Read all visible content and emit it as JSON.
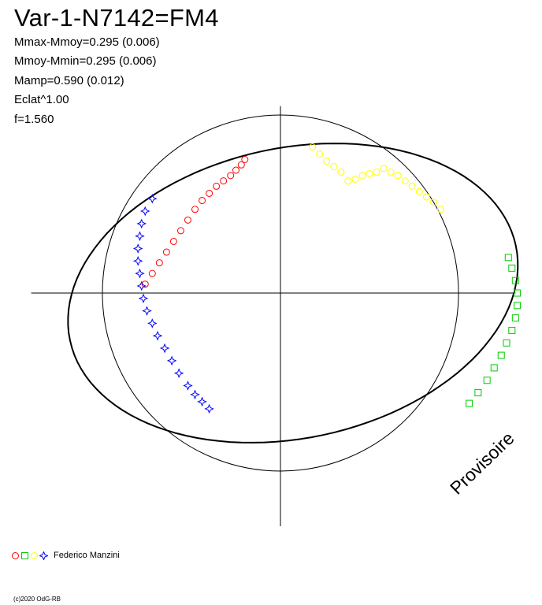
{
  "title": "Var-1-N7142=FM4",
  "stats": [
    "Mmax-Mmoy=0.295 (0.006)",
    "Mmoy-Mmin=0.295 (0.006)",
    "Mamp=0.590 (0.012)",
    "Eclat^1.00",
    "f=1.560"
  ],
  "watermark": "Provisoire",
  "legend": {
    "observer": "Federico Manzini",
    "symbols": [
      "circle",
      "square",
      "circle",
      "star"
    ],
    "colors": [
      "#ff0000",
      "#00cc00",
      "#ffff00",
      "#0000ff"
    ]
  },
  "footer": "(c)2020 OdG-RB",
  "chart_data": {
    "type": "scatter",
    "title": "Var-1-N7142=FM4",
    "xlabel": "",
    "ylabel": "",
    "grid": false,
    "reference_circle": true,
    "series": [
      {
        "color": "#ff0000",
        "marker": "circle",
        "x": [
          -0.76,
          -0.72,
          -0.68,
          -0.64,
          -0.6,
          -0.56,
          -0.52,
          -0.48,
          -0.44,
          -0.4,
          -0.36,
          -0.32,
          -0.28,
          -0.25,
          -0.22,
          -0.2
        ],
        "y": [
          0.05,
          0.11,
          0.17,
          0.23,
          0.29,
          0.35,
          0.41,
          0.47,
          0.52,
          0.56,
          0.6,
          0.63,
          0.66,
          0.69,
          0.72,
          0.75
        ]
      },
      {
        "color": "#0000ff",
        "marker": "star",
        "x": [
          -0.72,
          -0.76,
          -0.78,
          -0.79,
          -0.8,
          -0.8,
          -0.79,
          -0.78,
          -0.77,
          -0.75,
          -0.72,
          -0.69,
          -0.65,
          -0.61,
          -0.57,
          -0.52,
          -0.48,
          -0.44,
          -0.4
        ],
        "y": [
          0.53,
          0.46,
          0.39,
          0.32,
          0.25,
          0.18,
          0.11,
          0.04,
          -0.03,
          -0.1,
          -0.17,
          -0.24,
          -0.31,
          -0.38,
          -0.45,
          -0.52,
          -0.57,
          -0.61,
          -0.65
        ]
      },
      {
        "color": "#ffff00",
        "marker": "circle",
        "x": [
          0.18,
          0.22,
          0.26,
          0.3,
          0.34,
          0.38,
          0.42,
          0.46,
          0.5,
          0.54,
          0.58,
          0.62,
          0.66,
          0.7,
          0.74,
          0.78,
          0.82,
          0.86,
          0.9
        ],
        "y": [
          0.82,
          0.78,
          0.74,
          0.71,
          0.68,
          0.63,
          0.64,
          0.66,
          0.67,
          0.68,
          0.7,
          0.68,
          0.66,
          0.63,
          0.6,
          0.57,
          0.54,
          0.51,
          0.47
        ]
      },
      {
        "color": "#00cc00",
        "marker": "square",
        "x": [
          1.28,
          1.3,
          1.32,
          1.33,
          1.33,
          1.32,
          1.3,
          1.27,
          1.24,
          1.2,
          1.16,
          1.11,
          1.06
        ],
        "y": [
          0.2,
          0.14,
          0.07,
          0.0,
          -0.07,
          -0.14,
          -0.21,
          -0.28,
          -0.35,
          -0.42,
          -0.49,
          -0.56,
          -0.62
        ]
      }
    ]
  }
}
